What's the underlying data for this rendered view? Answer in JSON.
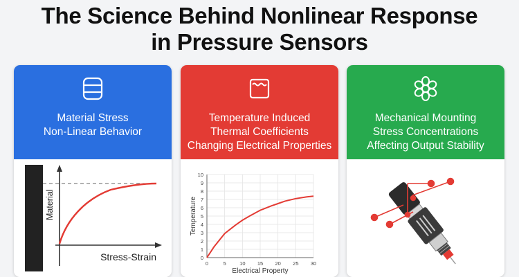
{
  "title_line1": "The Science Behind Nonlinear Response",
  "title_line2": "in Pressure Sensors",
  "cards": [
    {
      "icon": "database-stack-icon",
      "color": "#2a6fe0",
      "line1": "Material Stress",
      "line2": "Non-Linear Behavior",
      "y_label": "Material",
      "x_label": "Stress-Strain"
    },
    {
      "icon": "heated-container-icon",
      "color": "#e33b34",
      "line1": "Temperature Induced",
      "line2": "Thermal Coefficients",
      "line3": "Changing Electrical Properties"
    },
    {
      "icon": "flower-gear-icon",
      "color": "#27aa4e",
      "line1": "Mechanical Mounting",
      "line2": "Stress Concentrations",
      "line3": "Affecting Output Stability"
    }
  ],
  "chart_data": {
    "type": "line",
    "xlabel": "Electrical Property",
    "ylabel": "Temperature",
    "xlim": [
      0,
      30
    ],
    "ylim": [
      0,
      10
    ],
    "x_ticks": [
      "0",
      "5",
      "10",
      "15",
      "20",
      "25",
      "30"
    ],
    "y_ticks": [
      "0",
      "1",
      "2",
      "3",
      "4",
      "5",
      "6",
      "7",
      "8",
      "9",
      "10"
    ],
    "grid": true,
    "series": [
      {
        "color": "#e33b34",
        "x": [
          0,
          2,
          5,
          8,
          10,
          12,
          15,
          18,
          20,
          22,
          25,
          28,
          30
        ],
        "values": [
          0,
          1.3,
          2.9,
          3.9,
          4.5,
          5.0,
          5.7,
          6.2,
          6.5,
          6.8,
          7.1,
          7.3,
          7.4
        ]
      }
    ]
  }
}
